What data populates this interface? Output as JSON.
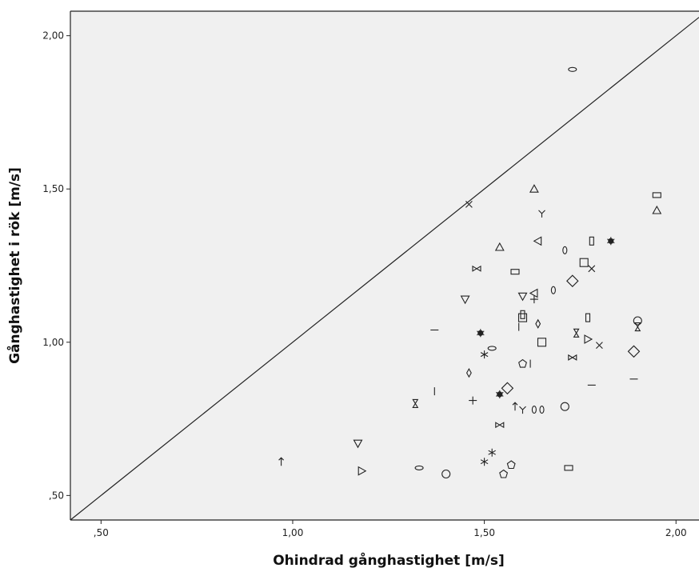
{
  "chart_data": {
    "type": "scatter",
    "xlabel": "Ohindrad gånghastighet [m/s]",
    "ylabel": "Gånghastighet i rök [m/s]",
    "xlim": [
      0.42,
      2.06
    ],
    "ylim": [
      0.42,
      2.08
    ],
    "x_ticks": [
      {
        "value": 0.5,
        "label": ",50"
      },
      {
        "value": 1.0,
        "label": "1,00"
      },
      {
        "value": 1.5,
        "label": "1,50"
      },
      {
        "value": 2.0,
        "label": "2,00"
      }
    ],
    "y_ticks": [
      {
        "value": 0.5,
        "label": ",50"
      },
      {
        "value": 1.0,
        "label": "1,00"
      },
      {
        "value": 1.5,
        "label": "1,50"
      },
      {
        "value": 2.0,
        "label": "2,00"
      }
    ],
    "reference_line": {
      "type": "y=x"
    },
    "background_color": "#f0f0f0",
    "grid": false,
    "points": [
      {
        "x": 1.73,
        "y": 1.89,
        "marker": "ellipse-h"
      },
      {
        "x": 1.46,
        "y": 1.45,
        "marker": "x"
      },
      {
        "x": 1.63,
        "y": 1.5,
        "marker": "triangle-up"
      },
      {
        "x": 1.65,
        "y": 1.42,
        "marker": "y"
      },
      {
        "x": 1.95,
        "y": 1.48,
        "marker": "rect-h"
      },
      {
        "x": 1.95,
        "y": 1.43,
        "marker": "triangle-up"
      },
      {
        "x": 1.54,
        "y": 1.31,
        "marker": "triangle-up"
      },
      {
        "x": 1.64,
        "y": 1.33,
        "marker": "triangle-left"
      },
      {
        "x": 1.78,
        "y": 1.33,
        "marker": "rect-v"
      },
      {
        "x": 1.83,
        "y": 1.33,
        "marker": "asterisk-bold"
      },
      {
        "x": 1.71,
        "y": 1.3,
        "marker": "ellipse-v"
      },
      {
        "x": 1.76,
        "y": 1.26,
        "marker": "square"
      },
      {
        "x": 1.78,
        "y": 1.24,
        "marker": "x"
      },
      {
        "x": 1.48,
        "y": 1.24,
        "marker": "bowtie"
      },
      {
        "x": 1.58,
        "y": 1.23,
        "marker": "rect-h"
      },
      {
        "x": 1.73,
        "y": 1.2,
        "marker": "diamond"
      },
      {
        "x": 1.68,
        "y": 1.17,
        "marker": "ellipse-v"
      },
      {
        "x": 1.63,
        "y": 1.16,
        "marker": "triangle-left"
      },
      {
        "x": 1.6,
        "y": 1.15,
        "marker": "triangle-down"
      },
      {
        "x": 1.63,
        "y": 1.14,
        "marker": "plus"
      },
      {
        "x": 1.45,
        "y": 1.14,
        "marker": "triangle-down"
      },
      {
        "x": 1.6,
        "y": 1.09,
        "marker": "rect-v"
      },
      {
        "x": 1.6,
        "y": 1.08,
        "marker": "square"
      },
      {
        "x": 1.77,
        "y": 1.08,
        "marker": "rect-v"
      },
      {
        "x": 1.9,
        "y": 1.07,
        "marker": "circle"
      },
      {
        "x": 1.9,
        "y": 1.05,
        "marker": "hourglass"
      },
      {
        "x": 1.59,
        "y": 1.05,
        "marker": "vline"
      },
      {
        "x": 1.64,
        "y": 1.06,
        "marker": "diamond-thin"
      },
      {
        "x": 1.37,
        "y": 1.04,
        "marker": "hline"
      },
      {
        "x": 1.49,
        "y": 1.03,
        "marker": "asterisk-bold"
      },
      {
        "x": 1.74,
        "y": 1.03,
        "marker": "hourglass"
      },
      {
        "x": 1.77,
        "y": 1.01,
        "marker": "triangle-right"
      },
      {
        "x": 1.65,
        "y": 1.0,
        "marker": "square"
      },
      {
        "x": 1.8,
        "y": 0.99,
        "marker": "x"
      },
      {
        "x": 1.52,
        "y": 0.98,
        "marker": "ellipse-h"
      },
      {
        "x": 1.89,
        "y": 0.97,
        "marker": "diamond"
      },
      {
        "x": 1.5,
        "y": 0.96,
        "marker": "asterisk"
      },
      {
        "x": 1.73,
        "y": 0.95,
        "marker": "bowtie"
      },
      {
        "x": 1.6,
        "y": 0.93,
        "marker": "pentagon"
      },
      {
        "x": 1.62,
        "y": 0.93,
        "marker": "vline"
      },
      {
        "x": 1.46,
        "y": 0.9,
        "marker": "diamond-thin"
      },
      {
        "x": 1.89,
        "y": 0.88,
        "marker": "hline"
      },
      {
        "x": 1.78,
        "y": 0.86,
        "marker": "hline"
      },
      {
        "x": 1.56,
        "y": 0.85,
        "marker": "diamond"
      },
      {
        "x": 1.37,
        "y": 0.84,
        "marker": "vline"
      },
      {
        "x": 1.54,
        "y": 0.83,
        "marker": "asterisk-bold"
      },
      {
        "x": 1.47,
        "y": 0.81,
        "marker": "plus"
      },
      {
        "x": 1.32,
        "y": 0.8,
        "marker": "hourglass"
      },
      {
        "x": 1.71,
        "y": 0.79,
        "marker": "circle"
      },
      {
        "x": 1.58,
        "y": 0.79,
        "marker": "arrow-up"
      },
      {
        "x": 1.6,
        "y": 0.78,
        "marker": "y"
      },
      {
        "x": 1.63,
        "y": 0.78,
        "marker": "ellipse-v"
      },
      {
        "x": 1.65,
        "y": 0.78,
        "marker": "ellipse-v"
      },
      {
        "x": 1.54,
        "y": 0.73,
        "marker": "bowtie"
      },
      {
        "x": 1.17,
        "y": 0.67,
        "marker": "triangle-down"
      },
      {
        "x": 1.52,
        "y": 0.64,
        "marker": "asterisk"
      },
      {
        "x": 0.97,
        "y": 0.61,
        "marker": "arrow-up"
      },
      {
        "x": 1.5,
        "y": 0.61,
        "marker": "asterisk"
      },
      {
        "x": 1.57,
        "y": 0.6,
        "marker": "pentagon"
      },
      {
        "x": 1.33,
        "y": 0.59,
        "marker": "ellipse-h"
      },
      {
        "x": 1.72,
        "y": 0.59,
        "marker": "rect-h"
      },
      {
        "x": 1.18,
        "y": 0.58,
        "marker": "triangle-right"
      },
      {
        "x": 1.4,
        "y": 0.57,
        "marker": "circle"
      },
      {
        "x": 1.55,
        "y": 0.57,
        "marker": "pentagon"
      }
    ]
  }
}
